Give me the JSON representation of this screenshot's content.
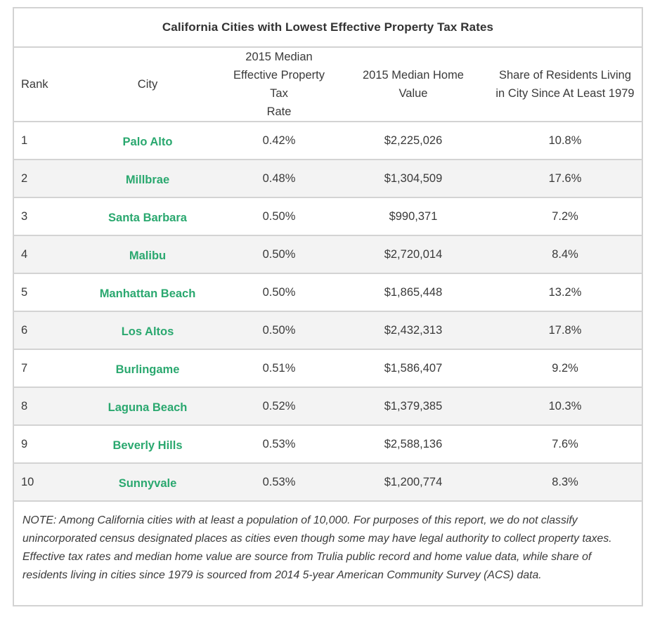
{
  "title": "California Cities with Lowest Effective Property Tax Rates",
  "headers": {
    "rank": "Rank",
    "city": "City",
    "rate_line1": "2015 Median",
    "rate_line2": "Effective Property Tax",
    "rate_line3": "Rate",
    "value_line1": "2015 Median Home",
    "value_line2": "Value",
    "share_line1": "Share of Residents Living",
    "share_line2": "in City Since At Least 1979"
  },
  "rows": [
    {
      "rank": "1",
      "city": "Palo Alto",
      "rate": "0.42%",
      "value": "$2,225,026",
      "share": "10.8%"
    },
    {
      "rank": "2",
      "city": "Millbrae",
      "rate": "0.48%",
      "value": "$1,304,509",
      "share": "17.6%"
    },
    {
      "rank": "3",
      "city": "Santa Barbara",
      "rate": "0.50%",
      "value": "$990,371",
      "share": "7.2%"
    },
    {
      "rank": "4",
      "city": "Malibu",
      "rate": "0.50%",
      "value": "$2,720,014",
      "share": "8.4%"
    },
    {
      "rank": "5",
      "city": "Manhattan Beach",
      "rate": "0.50%",
      "value": "$1,865,448",
      "share": "13.2%"
    },
    {
      "rank": "6",
      "city": "Los Altos",
      "rate": "0.50%",
      "value": "$2,432,313",
      "share": "17.8%"
    },
    {
      "rank": "7",
      "city": "Burlingame",
      "rate": "0.51%",
      "value": "$1,586,407",
      "share": "9.2%"
    },
    {
      "rank": "8",
      "city": "Laguna Beach",
      "rate": "0.52%",
      "value": "$1,379,385",
      "share": "10.3%"
    },
    {
      "rank": "9",
      "city": "Beverly Hills",
      "rate": "0.53%",
      "value": "$2,588,136",
      "share": "7.6%"
    },
    {
      "rank": "10",
      "city": "Sunnyvale",
      "rate": "0.53%",
      "value": "$1,200,774",
      "share": "8.3%"
    }
  ],
  "note": "NOTE: Among California cities with at least a population of 10,000. For purposes of this report, we do not classify unincorporated census designated places as cities even though some may have legal authority to collect property taxes. Effective tax rates and median home value are source from Trulia public record and home value data, while share of residents living in cities since 1979 is sourced from 2014 5-year American Community Survey (ACS) data.",
  "colors": {
    "city_link": "#2aa86f",
    "border": "#d3d3d3",
    "stripe": "#f3f3f3",
    "text": "#3a3a3a"
  }
}
